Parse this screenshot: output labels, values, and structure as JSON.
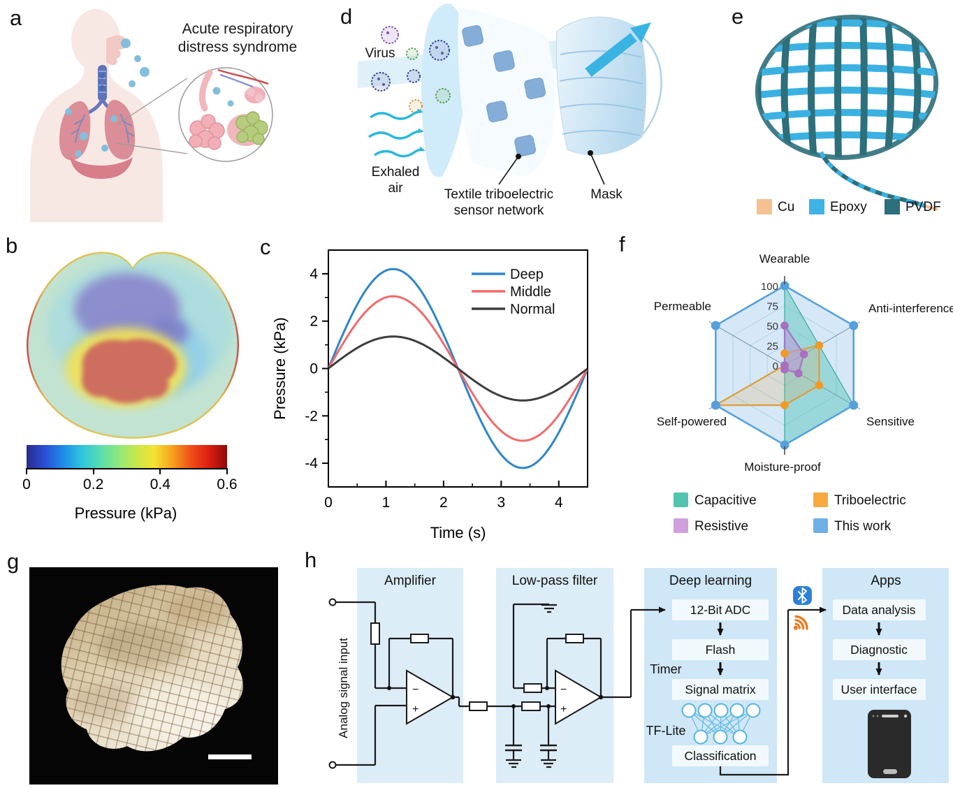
{
  "panels": {
    "a": {
      "label": "a",
      "caption": [
        "Acute respiratory",
        "distress syndrome"
      ]
    },
    "b": {
      "label": "b"
    },
    "c": {
      "label": "c"
    },
    "d": {
      "label": "d",
      "virus_label": "Virus",
      "exhaled_label": [
        "Exhaled",
        "air"
      ],
      "sensor_label": [
        "Textile triboelectric",
        "sensor network"
      ],
      "mask_label": "Mask"
    },
    "e": {
      "label": "e",
      "legend": [
        {
          "name": "Cu",
          "color": "#f4c290"
        },
        {
          "name": "Epoxy",
          "color": "#3eb3e6"
        },
        {
          "name": "PVDF",
          "color": "#2d6f7a"
        }
      ]
    },
    "f": {
      "label": "f"
    },
    "g": {
      "label": "g"
    },
    "h": {
      "label": "h",
      "sections": [
        "Amplifier",
        "Low-pass filter",
        "Deep learning",
        "Apps"
      ],
      "input_label": "Analog signal input",
      "op_minus": "−",
      "op_plus": "+",
      "dl_boxes": [
        "12-Bit ADC",
        "Flash",
        "Signal matrix",
        "Classification"
      ],
      "side_labels": [
        "Timer",
        "TF-Lite"
      ],
      "apps_boxes": [
        "Data analysis",
        "Diagnostic",
        "User interface"
      ],
      "bluetooth_color": "#2f7fd6",
      "wireless_color": "#f07818"
    }
  },
  "chart_data": [
    {
      "id": "c",
      "type": "line",
      "title": "",
      "xlabel": "Time (s)",
      "ylabel": "Pressure (kPa)",
      "xlim": [
        0,
        4.5
      ],
      "ylim": [
        -5,
        5
      ],
      "xticks": [
        0,
        1,
        2,
        3,
        4
      ],
      "yticks": [
        -4,
        -2,
        0,
        2,
        4
      ],
      "period": 4.5,
      "grid": false,
      "legend_position": "top-right",
      "x_samples": [
        0,
        0.25,
        0.5,
        0.75,
        1.0,
        1.25,
        1.5,
        1.75,
        2.0,
        2.25,
        2.5,
        2.75,
        3.0,
        3.25,
        3.5,
        3.75,
        4.0,
        4.25,
        4.5
      ],
      "series": [
        {
          "name": "Deep",
          "color": "#2e86c8",
          "amplitude": 4.2,
          "values": [
            0,
            1.44,
            2.7,
            3.64,
            4.14,
            4.14,
            3.64,
            2.7,
            1.44,
            0,
            -1.44,
            -2.7,
            -3.64,
            -4.14,
            -4.14,
            -3.64,
            -2.7,
            -1.44,
            0
          ]
        },
        {
          "name": "Middle",
          "color": "#f26a6a",
          "amplitude": 3.05,
          "values": [
            0,
            1.04,
            1.96,
            2.64,
            3.0,
            3.0,
            2.64,
            1.96,
            1.04,
            0,
            -1.04,
            -1.96,
            -2.64,
            -3.0,
            -3.0,
            -2.64,
            -1.96,
            -1.04,
            0
          ]
        },
        {
          "name": "Normal",
          "color": "#3d3d3d",
          "amplitude": 1.35,
          "values": [
            0,
            0.46,
            0.87,
            1.17,
            1.33,
            1.33,
            1.17,
            0.87,
            0.46,
            0,
            -0.46,
            -0.87,
            -1.17,
            -1.33,
            -1.33,
            -1.17,
            -0.87,
            -0.46,
            0
          ]
        }
      ]
    },
    {
      "id": "f",
      "type": "radar",
      "categories": [
        "Wearable",
        "Anti-interference",
        "Sensitive",
        "Moisture-proof",
        "Self-powered",
        "Permeable"
      ],
      "rticks": [
        0,
        25,
        50,
        75,
        100
      ],
      "rlim": [
        0,
        100
      ],
      "series": [
        {
          "name": "Capacitive",
          "color": "#52c5b0",
          "fill": "rgba(77,197,177,0.45)",
          "stroke": "#2fa893",
          "dots": false,
          "values": [
            100,
            50,
            100,
            100,
            0,
            0
          ]
        },
        {
          "name": "Triboelectric",
          "color": "#f5a93f",
          "fill": "rgba(245,167,57,0.22)",
          "stroke": "#f29b22",
          "dots": true,
          "values": [
            15,
            50,
            50,
            50,
            100,
            0
          ]
        },
        {
          "name": "Resistive",
          "color": "#cfa0dc",
          "fill": "rgba(199,154,214,0.60)",
          "stroke": "#a96fc0",
          "dots": true,
          "values": [
            50,
            28,
            20,
            5,
            0,
            0
          ]
        },
        {
          "name": "This work",
          "color": "#6fb0e5",
          "fill": "rgba(109,174,227,0.15)",
          "stroke": "#55a0dd",
          "dots": true,
          "values": [
            100,
            100,
            100,
            100,
            100,
            100
          ]
        }
      ]
    },
    {
      "id": "b",
      "type": "heatmap",
      "title": "Pressure (kPa)",
      "colorbar": {
        "min": 0,
        "max": 0.6,
        "ticks": [
          "0",
          "0.2",
          "0.4",
          "0.6"
        ],
        "label": "Pressure (kPa)",
        "colormap": [
          "#2b2a8c",
          "#2a4fd8",
          "#1e8ae8",
          "#2fc4e0",
          "#55dcb2",
          "#8ce87e",
          "#c6e84c",
          "#f4e332",
          "#f8a01e",
          "#f05018",
          "#dc1e10",
          "#8e0a0a"
        ]
      }
    }
  ]
}
